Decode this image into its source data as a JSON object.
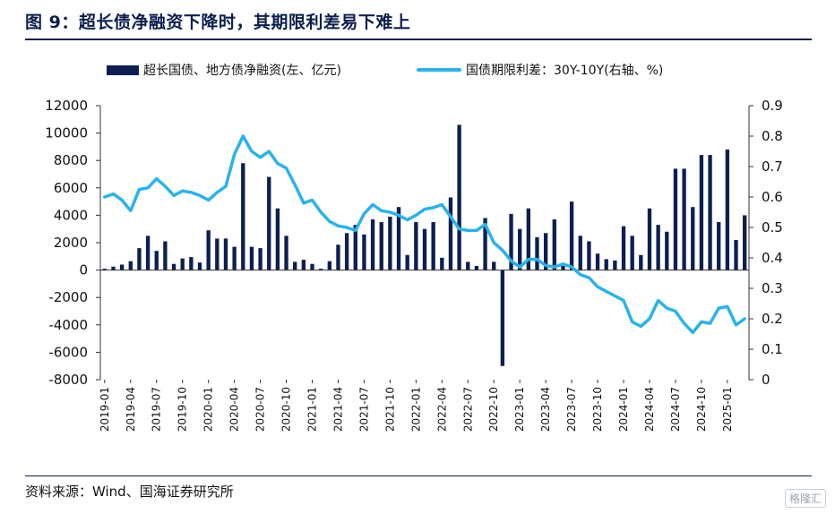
{
  "title": "图 9：超长债净融资下降时，其期限利差易下难上",
  "source": "资料来源：Wind、国海证券研究所",
  "watermark": "格隆汇",
  "colors": {
    "bar": "#0d1f52",
    "line": "#29b3ea",
    "rule": "#0b1f4d"
  },
  "chart_data": {
    "type": "bar",
    "legend": {
      "placement": "top",
      "bar_label": "超长国债、地方债净融资(左、亿元)",
      "line_label": "国债期限利差：30Y-10Y(右轴、%)"
    },
    "y_left": {
      "lim": [
        -8000,
        12000
      ],
      "ticks": [
        "-8000",
        "-6000",
        "-4000",
        "-2000",
        "0",
        "2000",
        "4000",
        "6000",
        "8000",
        "10000",
        "12000"
      ]
    },
    "y_right": {
      "lim": [
        0,
        0.9
      ],
      "ticks": [
        "0",
        "0.1",
        "0.2",
        "0.3",
        "0.4",
        "0.5",
        "0.6",
        "0.7",
        "0.8",
        "0.9"
      ]
    },
    "x_tick_labels": [
      "2019-01",
      "2019-04",
      "2019-07",
      "2019-10",
      "2020-01",
      "2020-04",
      "2020-07",
      "2020-10",
      "2021-01",
      "2021-04",
      "2021-07",
      "2021-10",
      "2022-01",
      "2022-04",
      "2022-07",
      "2022-10",
      "2023-01",
      "2023-04",
      "2023-07",
      "2023-10",
      "2024-01",
      "2024-04",
      "2024-07",
      "2024-10",
      "2025-01"
    ],
    "months": [
      "2019-01",
      "2019-02",
      "2019-03",
      "2019-04",
      "2019-05",
      "2019-06",
      "2019-07",
      "2019-08",
      "2019-09",
      "2019-10",
      "2019-11",
      "2019-12",
      "2020-01",
      "2020-02",
      "2020-03",
      "2020-04",
      "2020-05",
      "2020-06",
      "2020-07",
      "2020-08",
      "2020-09",
      "2020-10",
      "2020-11",
      "2020-12",
      "2021-01",
      "2021-02",
      "2021-03",
      "2021-04",
      "2021-05",
      "2021-06",
      "2021-07",
      "2021-08",
      "2021-09",
      "2021-10",
      "2021-11",
      "2021-12",
      "2022-01",
      "2022-02",
      "2022-03",
      "2022-04",
      "2022-05",
      "2022-06",
      "2022-07",
      "2022-08",
      "2022-09",
      "2022-10",
      "2022-11",
      "2022-12",
      "2023-01",
      "2023-02",
      "2023-03",
      "2023-04",
      "2023-05",
      "2023-06",
      "2023-07",
      "2023-08",
      "2023-09",
      "2023-10",
      "2023-11",
      "2023-12",
      "2024-01",
      "2024-02",
      "2024-03",
      "2024-04",
      "2024-05",
      "2024-06",
      "2024-07",
      "2024-08",
      "2024-09",
      "2024-10",
      "2024-11",
      "2024-12",
      "2025-01",
      "2025-02",
      "2025-03"
    ],
    "series": [
      {
        "name": "超长国债、地方债净融资(左、亿元)",
        "axis": "left",
        "type": "bar",
        "values": [
          100,
          250,
          400,
          650,
          1600,
          2500,
          1400,
          2100,
          450,
          850,
          950,
          550,
          2900,
          2300,
          2300,
          1700,
          7800,
          1700,
          1600,
          6800,
          4500,
          2500,
          600,
          750,
          450,
          100,
          650,
          1850,
          2700,
          3300,
          2600,
          3700,
          3500,
          3900,
          4600,
          1100,
          3500,
          3000,
          3500,
          900,
          5300,
          10600,
          600,
          300,
          3800,
          600,
          -7000,
          4100,
          3000,
          4500,
          2400,
          2700,
          3700,
          300,
          5000,
          2500,
          2100,
          1200,
          800,
          700,
          3200,
          2500,
          1100,
          4500,
          3300,
          2800,
          7400,
          7400,
          4600,
          8400,
          8400,
          3500,
          8800,
          2200,
          4000
        ]
      },
      {
        "name": "国债期限利差：30Y-10Y(右轴、%)",
        "axis": "right",
        "type": "line",
        "values": [
          0.6,
          0.61,
          0.59,
          0.555,
          0.625,
          0.63,
          0.66,
          0.635,
          0.605,
          0.62,
          0.615,
          0.605,
          0.59,
          0.615,
          0.635,
          0.74,
          0.8,
          0.75,
          0.73,
          0.75,
          0.71,
          0.695,
          0.64,
          0.58,
          0.59,
          0.55,
          0.52,
          0.505,
          0.5,
          0.49,
          0.545,
          0.575,
          0.555,
          0.55,
          0.54,
          0.525,
          0.54,
          0.56,
          0.565,
          0.575,
          0.535,
          0.495,
          0.49,
          0.49,
          0.51,
          0.45,
          0.425,
          0.39,
          0.37,
          0.395,
          0.395,
          0.375,
          0.37,
          0.38,
          0.37,
          0.345,
          0.335,
          0.305,
          0.29,
          0.275,
          0.26,
          0.19,
          0.175,
          0.2,
          0.26,
          0.235,
          0.225,
          0.185,
          0.155,
          0.19,
          0.185,
          0.235,
          0.24,
          0.18,
          0.2
        ]
      }
    ]
  }
}
